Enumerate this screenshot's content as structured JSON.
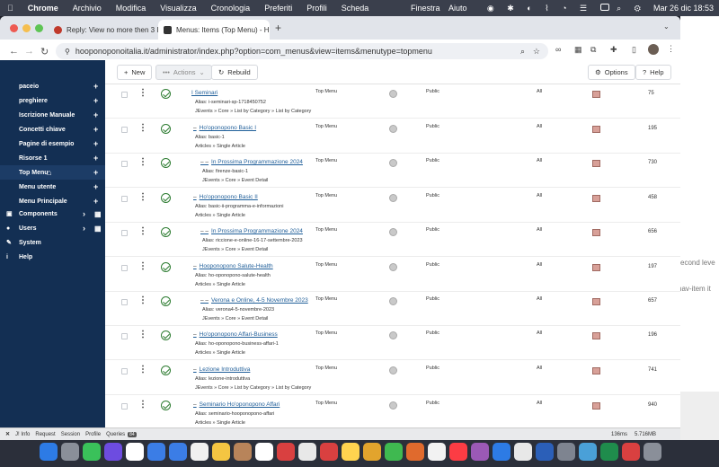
{
  "menubar": {
    "apple": "",
    "items": [
      "Chrome",
      "Archivio",
      "Modifica",
      "Visualizza",
      "Cronologia",
      "Preferiti",
      "Profili",
      "Scheda"
    ],
    "right_items": [
      "Finestra",
      "Aiuto"
    ],
    "clock": "Mar 26 dic  18:53"
  },
  "tabs": [
    {
      "label": "Reply: View no more then 3 I",
      "active": false
    },
    {
      "label": "Menus: Items (Top Menu) - H",
      "active": true
    }
  ],
  "url": "hooponoponoitalia.it/administrator/index.php?option=com_menus&view=items&menutype=topmenu",
  "sidebar": {
    "menu_items": [
      {
        "label": "paceio"
      },
      {
        "label": "preghiere"
      },
      {
        "label": "Iscrizione Manuale"
      },
      {
        "label": "Concetti chiave"
      },
      {
        "label": "Pagine di esempio"
      },
      {
        "label": "Risorse 1"
      },
      {
        "label": "Top Menu"
      },
      {
        "label": "Menu utente"
      },
      {
        "label": "Menu Principale"
      }
    ],
    "sections": [
      {
        "label": "Components",
        "icon": "components-icon"
      },
      {
        "label": "Users",
        "icon": "users-icon"
      },
      {
        "label": "System",
        "icon": "wrench-icon"
      },
      {
        "label": "Help",
        "icon": "info-icon"
      }
    ]
  },
  "toolbar": {
    "new_label": "New",
    "actions_label": "Actions",
    "rebuild_label": "Rebuild",
    "options_label": "Options",
    "help_label": "Help"
  },
  "rows": [
    {
      "title": "I Seminari",
      "prefix": "",
      "alias": "Alias: i-seminari-sp-1718450752",
      "type": "JEvents » Core » List by Category » List by Category",
      "menu": "Top Menu",
      "access": "Public",
      "language": "All",
      "id": "75"
    },
    {
      "title": "Ho'oponopono Basic I",
      "prefix": "–",
      "alias": "Alias: basic-1",
      "type": "Articles » Single Article",
      "menu": "Top Menu",
      "access": "Public",
      "language": "All",
      "id": "195"
    },
    {
      "title": "In Prossima Programmazione 2024",
      "prefix": "–  –",
      "alias": "Alias: firenze-basic-1",
      "type": "JEvents » Core » Event Detail",
      "menu": "Top Menu",
      "access": "Public",
      "language": "All",
      "id": "730"
    },
    {
      "title": "Ho'oponopono Basic II",
      "prefix": "–",
      "alias": "Alias: basic-ii-programma-e-informazioni",
      "type": "Articles » Single Article",
      "menu": "Top Menu",
      "access": "Public",
      "language": "All",
      "id": "458"
    },
    {
      "title": "In Prossima Programmazione 2024",
      "prefix": "–  –",
      "alias": "Alias: riccione-e-online-16-17-settembre-2023",
      "type": "JEvents » Core » Event Detail",
      "menu": "Top Menu",
      "access": "Public",
      "language": "All",
      "id": "656"
    },
    {
      "title": "Hooponopono Salute-Health",
      "prefix": "–",
      "alias": "Alias: ho-oponopono-salute-health",
      "type": "Articles » Single Article",
      "menu": "Top Menu",
      "access": "Public",
      "language": "All",
      "id": "197"
    },
    {
      "title": "Verona e Online, 4-5 Novembre 2023",
      "prefix": "–  –",
      "alias": "Alias: verona4-5-novembre-2023",
      "type": "JEvents » Core » Event Detail",
      "menu": "Top Menu",
      "access": "Public",
      "language": "All",
      "id": "657"
    },
    {
      "title": "Ho'oponopono Affari-Business",
      "prefix": "–",
      "alias": "Alias: ho-oponopono-business-affari-1",
      "type": "Articles » Single Article",
      "menu": "Top Menu",
      "access": "Public",
      "language": "All",
      "id": "196"
    },
    {
      "title": "Lezione Introduttiva",
      "prefix": "–",
      "alias": "Alias: lezione-introduttiva",
      "type": "JEvents » Core » List by Category » List by Category",
      "menu": "Top Menu",
      "access": "Public",
      "language": "All",
      "id": "741"
    },
    {
      "title": "Seminario Ho'oponopono Affari",
      "prefix": "–",
      "alias": "Alias: seminario-hooponopono-affari",
      "type": "Articles » Single Article",
      "menu": "Top Menu",
      "access": "Public",
      "language": "All",
      "id": "940"
    }
  ],
  "statusbar": {
    "items": [
      "J! Info",
      "Request",
      "Session",
      "Profile",
      "Queries"
    ],
    "queries_badge": "84",
    "timing": "136ms",
    "memory": "5.716MB"
  },
  "background_text": {
    "line1": "econd leve",
    "line2": "nav-item it"
  },
  "colors": {
    "sidebar": "#132f53",
    "link": "#1f5e99",
    "published": "#2f7d33"
  }
}
